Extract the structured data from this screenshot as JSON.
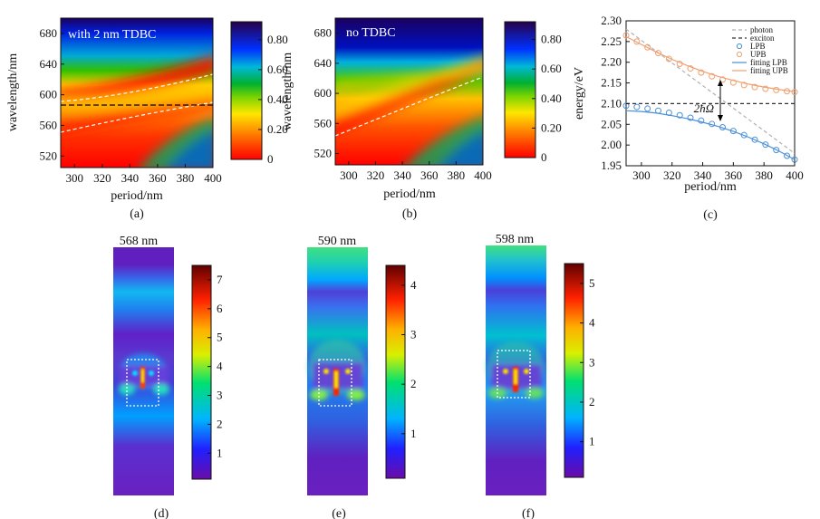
{
  "panels": {
    "a": {
      "label": "(a)",
      "inset": "with 2 nm TDBC",
      "xlabel": "period/nm",
      "ylabel": "wavelength/nm",
      "xticks": [
        "300",
        "320",
        "340",
        "360",
        "380",
        "400"
      ],
      "yticks": [
        "520",
        "560",
        "600",
        "640",
        "680"
      ],
      "cbar_ticks": [
        "0",
        "0.20",
        "0.40",
        "0.60",
        "0.80"
      ],
      "exciton_line_nm": 585
    },
    "b": {
      "label": "(b)",
      "inset": "no TDBC",
      "xlabel": "period/nm",
      "ylabel": "wavelength/nm",
      "xticks": [
        "300",
        "320",
        "340",
        "360",
        "380",
        "400"
      ],
      "yticks": [
        "520",
        "560",
        "600",
        "640",
        "680"
      ],
      "cbar_ticks": [
        "0",
        "0.20",
        "0.40",
        "0.60",
        "0.80"
      ]
    },
    "c": {
      "label": "(c)",
      "xlabel": "period/nm",
      "ylabel": "energy/eV",
      "xticks": [
        "300",
        "320",
        "340",
        "360",
        "380",
        "400"
      ],
      "yticks": [
        "1.95",
        "2.00",
        "2.05",
        "2.10",
        "2.15",
        "2.20",
        "2.25",
        "2.30"
      ],
      "annotation": "2ħΩ",
      "legend": [
        "photon",
        "exciton",
        "LPB",
        "UPB",
        "fitting LPB",
        "fitting UPB"
      ]
    },
    "d": {
      "label": "(d)",
      "title": "568 nm",
      "cbar_ticks": [
        "1",
        "2",
        "3",
        "4",
        "5",
        "6",
        "7"
      ]
    },
    "e": {
      "label": "(e)",
      "title": "590 nm",
      "cbar_ticks": [
        "1",
        "2",
        "3",
        "4"
      ]
    },
    "f": {
      "label": "(f)",
      "title": "598 nm",
      "cbar_ticks": [
        "1",
        "2",
        "3",
        "4",
        "5"
      ]
    }
  },
  "colors": {
    "lpb": "#4a90d9",
    "upb": "#f0a070",
    "photon": "#b0b0b0",
    "exciton": "#333333"
  },
  "chart_data": [
    {
      "type": "line",
      "panel": "c",
      "xlim": [
        290,
        400
      ],
      "ylim": [
        1.95,
        2.3
      ],
      "series": [
        {
          "name": "photon",
          "x": [
            290,
            400
          ],
          "y": [
            2.28,
            1.98
          ]
        },
        {
          "name": "exciton",
          "x": [
            290,
            400
          ],
          "y": [
            2.1,
            2.1
          ]
        },
        {
          "name": "LPB",
          "x": [
            290,
            297,
            304,
            311,
            318,
            325,
            332,
            339,
            346,
            353,
            360,
            367,
            374,
            381,
            388,
            395,
            400
          ],
          "y": [
            2.095,
            2.092,
            2.088,
            2.083,
            2.078,
            2.072,
            2.066,
            2.059,
            2.051,
            2.043,
            2.034,
            2.024,
            2.013,
            2.001,
            1.988,
            1.974,
            1.965
          ]
        },
        {
          "name": "UPB",
          "x": [
            290,
            297,
            304,
            311,
            318,
            325,
            332,
            339,
            346,
            353,
            360,
            367,
            374,
            381,
            388,
            395,
            400
          ],
          "y": [
            2.265,
            2.25,
            2.236,
            2.222,
            2.208,
            2.196,
            2.185,
            2.175,
            2.166,
            2.158,
            2.151,
            2.145,
            2.14,
            2.136,
            2.133,
            2.13,
            2.128
          ]
        },
        {
          "name": "fitting LPB",
          "x": [
            290,
            300,
            310,
            320,
            330,
            340,
            350,
            360,
            370,
            380,
            390,
            400
          ],
          "y": [
            2.083,
            2.081,
            2.077,
            2.071,
            2.064,
            2.055,
            2.045,
            2.033,
            2.019,
            2.003,
            1.985,
            1.965
          ]
        },
        {
          "name": "fitting UPB",
          "x": [
            290,
            300,
            310,
            320,
            330,
            340,
            350,
            360,
            370,
            380,
            390,
            400
          ],
          "y": [
            2.262,
            2.243,
            2.224,
            2.207,
            2.192,
            2.178,
            2.166,
            2.156,
            2.147,
            2.14,
            2.134,
            2.129
          ]
        }
      ]
    }
  ]
}
